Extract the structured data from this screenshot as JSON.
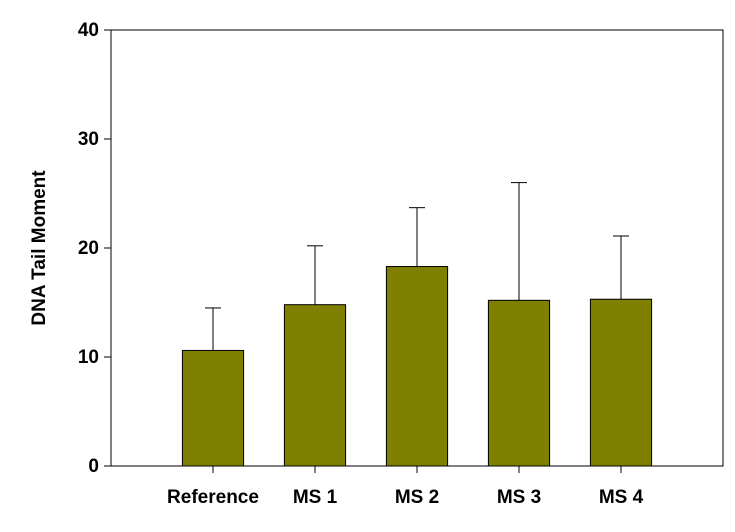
{
  "chart_data": {
    "type": "bar",
    "y_label": "DNA Tail Moment",
    "categories": [
      "Reference",
      "MS 1",
      "MS 2",
      "MS 3",
      "MS 4"
    ],
    "values": [
      10.6,
      14.8,
      18.3,
      15.2,
      15.3
    ],
    "errors": [
      3.9,
      5.4,
      5.4,
      10.8,
      5.8
    ],
    "color": "#7f7f00",
    "ylim": [
      0,
      40
    ],
    "yticks": [
      0,
      10,
      20,
      30,
      40
    ]
  }
}
